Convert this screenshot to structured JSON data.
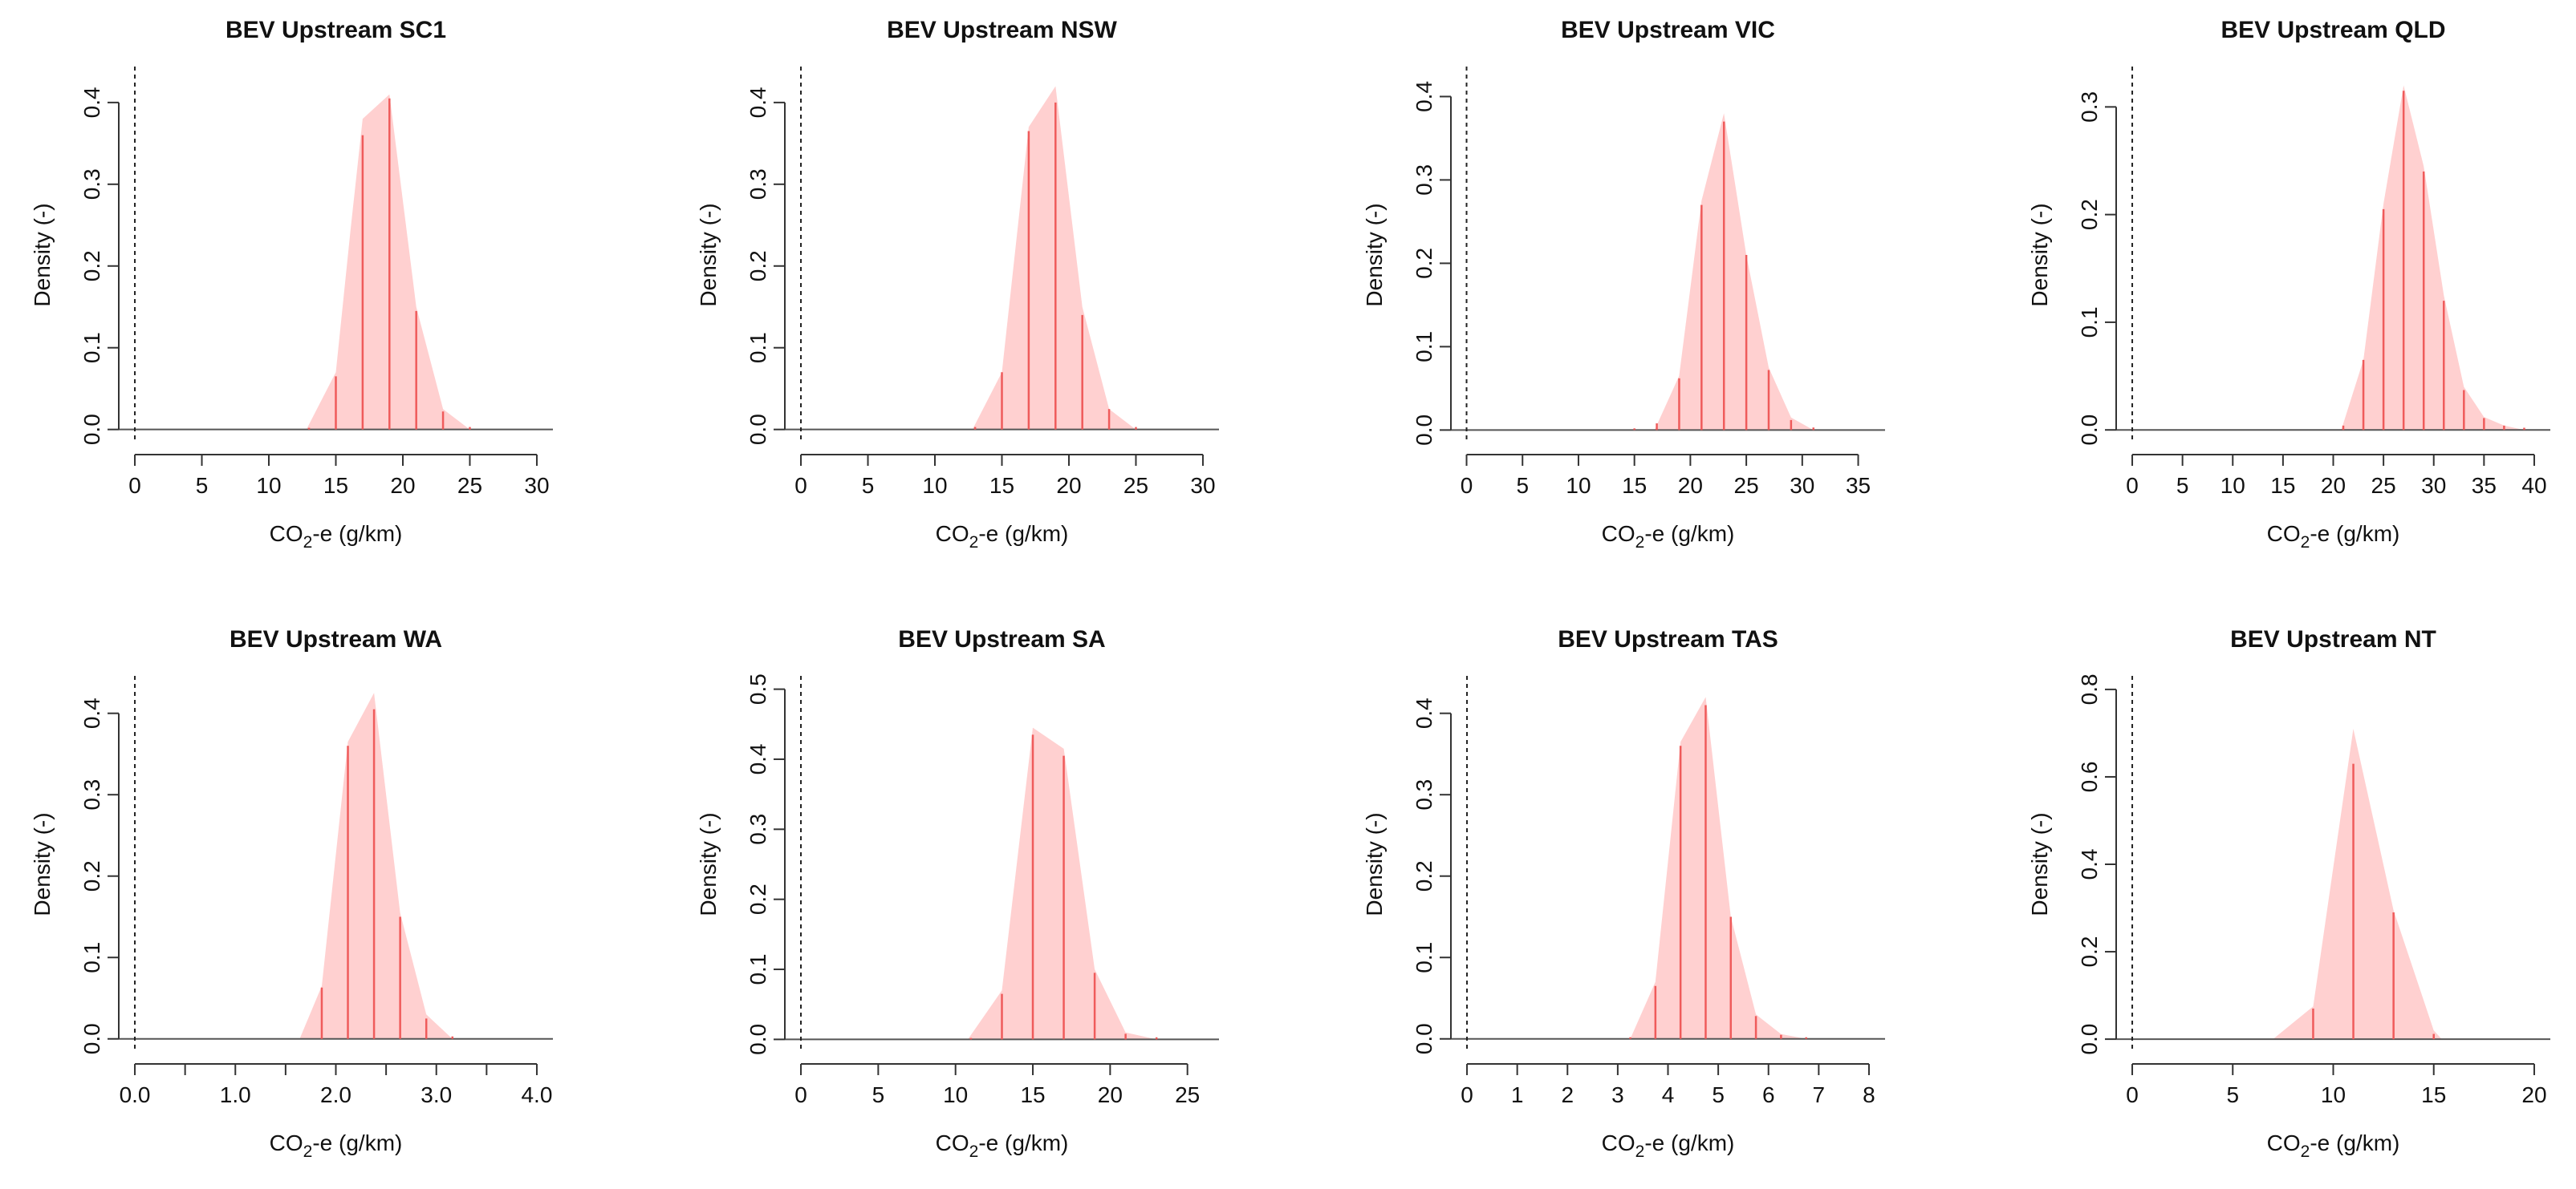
{
  "figure": {
    "xlabel_prefix": "CO",
    "xlabel_subscript": "2",
    "xlabel_suffix": "-e (g/km)",
    "colors": {
      "fill": "#ffd0d0",
      "spike": "#ef5b5b",
      "axis": "#333333",
      "text": "#111111"
    }
  },
  "chart_data": [
    {
      "type": "area",
      "title": "BEV Upstream SC1",
      "xlabel": "CO2-e (g/km)",
      "ylabel": "Density (-)",
      "xlim": [
        -1.2,
        31.2
      ],
      "ylim": [
        -0.017,
        0.444
      ],
      "xticks": [
        0,
        5,
        10,
        15,
        20,
        25,
        30
      ],
      "xtick_labels": [
        "0",
        "5",
        "10",
        "15",
        "20",
        "25",
        "30"
      ],
      "yticks": [
        0.0,
        0.1,
        0.2,
        0.3,
        0.4
      ],
      "ytick_labels": [
        "0.0",
        "0.1",
        "0.2",
        "0.3",
        "0.4"
      ],
      "density_outline": [
        [
          12.8,
          0.0
        ],
        [
          15.0,
          0.07
        ],
        [
          16.1,
          0.245
        ],
        [
          17.0,
          0.38
        ],
        [
          19.0,
          0.41
        ],
        [
          21.0,
          0.15
        ],
        [
          23.0,
          0.025
        ],
        [
          25.0,
          0.0
        ]
      ],
      "spikes": [
        [
          13,
          0.002
        ],
        [
          15,
          0.065
        ],
        [
          17,
          0.36
        ],
        [
          19,
          0.405
        ],
        [
          21,
          0.145
        ],
        [
          23,
          0.022
        ],
        [
          25,
          0.003
        ]
      ]
    },
    {
      "type": "area",
      "title": "BEV Upstream NSW",
      "xlabel": "CO2-e (g/km)",
      "ylabel": "Density (-)",
      "xlim": [
        -1.2,
        31.2
      ],
      "ylim": [
        -0.017,
        0.444
      ],
      "xticks": [
        0,
        5,
        10,
        15,
        20,
        25,
        30
      ],
      "xtick_labels": [
        "0",
        "5",
        "10",
        "15",
        "20",
        "25",
        "30"
      ],
      "yticks": [
        0.0,
        0.1,
        0.2,
        0.3,
        0.4
      ],
      "ytick_labels": [
        "0.0",
        "0.1",
        "0.2",
        "0.3",
        "0.4"
      ],
      "density_outline": [
        [
          12.8,
          0.0
        ],
        [
          15.0,
          0.07
        ],
        [
          17.0,
          0.37
        ],
        [
          19.0,
          0.42
        ],
        [
          21.0,
          0.15
        ],
        [
          23.0,
          0.025
        ],
        [
          25.0,
          0.0
        ]
      ],
      "spikes": [
        [
          13,
          0.003
        ],
        [
          15,
          0.07
        ],
        [
          17,
          0.365
        ],
        [
          19,
          0.4
        ],
        [
          21,
          0.14
        ],
        [
          23,
          0.025
        ],
        [
          25,
          0.003
        ]
      ]
    },
    {
      "type": "area",
      "title": "BEV Upstream VIC",
      "xlabel": "CO2-e (g/km)",
      "ylabel": "Density (-)",
      "xlim": [
        -1.4,
        37.4
      ],
      "ylim": [
        -0.016,
        0.436
      ],
      "xticks": [
        0,
        5,
        10,
        15,
        20,
        25,
        30,
        35
      ],
      "xtick_labels": [
        "0",
        "5",
        "10",
        "15",
        "20",
        "25",
        "30",
        "35"
      ],
      "yticks": [
        0.0,
        0.1,
        0.2,
        0.3,
        0.4
      ],
      "ytick_labels": [
        "0.0",
        "0.1",
        "0.2",
        "0.3",
        "0.4"
      ],
      "density_outline": [
        [
          16.8,
          0.0
        ],
        [
          19.0,
          0.065
        ],
        [
          21.0,
          0.275
        ],
        [
          23.0,
          0.38
        ],
        [
          25.0,
          0.21
        ],
        [
          27.0,
          0.075
        ],
        [
          29.0,
          0.015
        ],
        [
          31.0,
          0.0
        ]
      ],
      "spikes": [
        [
          15,
          0.002
        ],
        [
          17,
          0.008
        ],
        [
          19,
          0.062
        ],
        [
          21,
          0.27
        ],
        [
          23,
          0.37
        ],
        [
          25,
          0.21
        ],
        [
          27,
          0.072
        ],
        [
          29,
          0.012
        ],
        [
          31,
          0.003
        ]
      ]
    },
    {
      "type": "area",
      "title": "BEV Upstream QLD",
      "xlabel": "CO2-e (g/km)",
      "ylabel": "Density (-)",
      "xlim": [
        -1.6,
        41.6
      ],
      "ylim": [
        -0.0125,
        0.3375
      ],
      "xticks": [
        0,
        5,
        10,
        15,
        20,
        25,
        30,
        35,
        40
      ],
      "xtick_labels": [
        "0",
        "5",
        "10",
        "15",
        "20",
        "25",
        "30",
        "35",
        "40"
      ],
      "yticks": [
        0.0,
        0.1,
        0.2,
        0.3
      ],
      "ytick_labels": [
        "0.0",
        "0.1",
        "0.2",
        "0.3"
      ],
      "density_outline": [
        [
          20.8,
          0.0
        ],
        [
          23.0,
          0.065
        ],
        [
          25.0,
          0.21
        ],
        [
          27.0,
          0.32
        ],
        [
          29.0,
          0.245
        ],
        [
          31.0,
          0.125
        ],
        [
          33.0,
          0.04
        ],
        [
          35.0,
          0.012
        ],
        [
          37.0,
          0.004
        ],
        [
          39.0,
          0.0
        ]
      ],
      "spikes": [
        [
          21,
          0.004
        ],
        [
          23,
          0.065
        ],
        [
          25,
          0.205
        ],
        [
          27,
          0.315
        ],
        [
          29,
          0.24
        ],
        [
          31,
          0.12
        ],
        [
          33,
          0.037
        ],
        [
          35,
          0.011
        ],
        [
          37,
          0.004
        ],
        [
          39,
          0.002
        ]
      ]
    },
    {
      "type": "area",
      "title": "BEV Upstream WA",
      "xlabel": "CO2-e (g/km)",
      "ylabel": "Density (-)",
      "xlim": [
        -0.16,
        4.16
      ],
      "ylim": [
        -0.017,
        0.446
      ],
      "xticks": [
        0.0,
        0.5,
        1.0,
        1.5,
        2.0,
        2.5,
        3.0,
        3.5,
        4.0
      ],
      "xtick_labels": [
        "0.0",
        "",
        "1.0",
        "",
        "2.0",
        "",
        "3.0",
        "",
        "4.0"
      ],
      "yticks": [
        0.0,
        0.1,
        0.2,
        0.3,
        0.4
      ],
      "ytick_labels": [
        "0.0",
        "0.1",
        "0.2",
        "0.3",
        "0.4"
      ],
      "density_outline": [
        [
          1.64,
          0.0
        ],
        [
          1.86,
          0.065
        ],
        [
          2.12,
          0.365
        ],
        [
          2.38,
          0.425
        ],
        [
          2.64,
          0.155
        ],
        [
          2.9,
          0.03
        ],
        [
          3.16,
          0.0
        ]
      ],
      "spikes": [
        [
          1.86,
          0.063
        ],
        [
          2.12,
          0.36
        ],
        [
          2.38,
          0.405
        ],
        [
          2.64,
          0.15
        ],
        [
          2.9,
          0.025
        ],
        [
          3.16,
          0.003
        ]
      ]
    },
    {
      "type": "area",
      "title": "BEV Upstream SA",
      "xlabel": "CO2-e (g/km)",
      "ylabel": "Density (-)",
      "xlim": [
        -1.04,
        27.04
      ],
      "ylim": [
        -0.019,
        0.519
      ],
      "xticks": [
        0,
        5,
        10,
        15,
        20,
        25
      ],
      "xtick_labels": [
        "0",
        "5",
        "10",
        "15",
        "20",
        "25"
      ],
      "yticks": [
        0.0,
        0.1,
        0.2,
        0.3,
        0.4,
        0.5
      ],
      "ytick_labels": [
        "0.0",
        "0.1",
        "0.2",
        "0.3",
        "0.4",
        "0.5"
      ],
      "density_outline": [
        [
          10.8,
          0.0
        ],
        [
          13.0,
          0.07
        ],
        [
          15.0,
          0.445
        ],
        [
          17.0,
          0.415
        ],
        [
          19.0,
          0.1
        ],
        [
          21.0,
          0.01
        ],
        [
          23.0,
          0.0
        ]
      ],
      "spikes": [
        [
          11,
          0.002
        ],
        [
          13,
          0.065
        ],
        [
          15,
          0.435
        ],
        [
          17,
          0.405
        ],
        [
          19,
          0.095
        ],
        [
          21,
          0.008
        ],
        [
          23,
          0.003
        ]
      ]
    },
    {
      "type": "area",
      "title": "BEV Upstream TAS",
      "xlabel": "CO2-e (g/km)",
      "ylabel": "Density (-)",
      "xlim": [
        -0.32,
        8.32
      ],
      "ylim": [
        -0.017,
        0.446
      ],
      "xticks": [
        0,
        1,
        2,
        3,
        4,
        5,
        6,
        7,
        8
      ],
      "xtick_labels": [
        "0",
        "1",
        "2",
        "3",
        "4",
        "5",
        "6",
        "7",
        "8"
      ],
      "yticks": [
        0.0,
        0.1,
        0.2,
        0.3,
        0.4
      ],
      "ytick_labels": [
        "0.0",
        "0.1",
        "0.2",
        "0.3",
        "0.4"
      ],
      "density_outline": [
        [
          3.25,
          0.0
        ],
        [
          3.75,
          0.07
        ],
        [
          4.25,
          0.365
        ],
        [
          4.75,
          0.42
        ],
        [
          5.25,
          0.15
        ],
        [
          5.75,
          0.03
        ],
        [
          6.25,
          0.006
        ],
        [
          6.75,
          0.0
        ]
      ],
      "spikes": [
        [
          3.25,
          0.002
        ],
        [
          3.75,
          0.065
        ],
        [
          4.25,
          0.36
        ],
        [
          4.75,
          0.41
        ],
        [
          5.25,
          0.15
        ],
        [
          5.75,
          0.028
        ],
        [
          6.25,
          0.005
        ],
        [
          6.75,
          0.002
        ]
      ]
    },
    {
      "type": "area",
      "title": "BEV Upstream NT",
      "xlabel": "CO2-e (g/km)",
      "ylabel": "Density (-)",
      "xlim": [
        -0.8,
        20.8
      ],
      "ylim": [
        -0.031,
        0.831
      ],
      "xticks": [
        0,
        5,
        10,
        15,
        20
      ],
      "xtick_labels": [
        "0",
        "5",
        "10",
        "15",
        "20"
      ],
      "yticks": [
        0.0,
        0.2,
        0.4,
        0.6,
        0.8
      ],
      "ytick_labels": [
        "0.0",
        "0.2",
        "0.4",
        "0.6",
        "0.8"
      ],
      "density_outline": [
        [
          7.0,
          0.0
        ],
        [
          9.0,
          0.075
        ],
        [
          11.0,
          0.71
        ],
        [
          13.0,
          0.295
        ],
        [
          15.0,
          0.02
        ],
        [
          15.4,
          0.0
        ]
      ],
      "spikes": [
        [
          9,
          0.07
        ],
        [
          11,
          0.63
        ],
        [
          13,
          0.29
        ],
        [
          15,
          0.012
        ]
      ]
    }
  ]
}
